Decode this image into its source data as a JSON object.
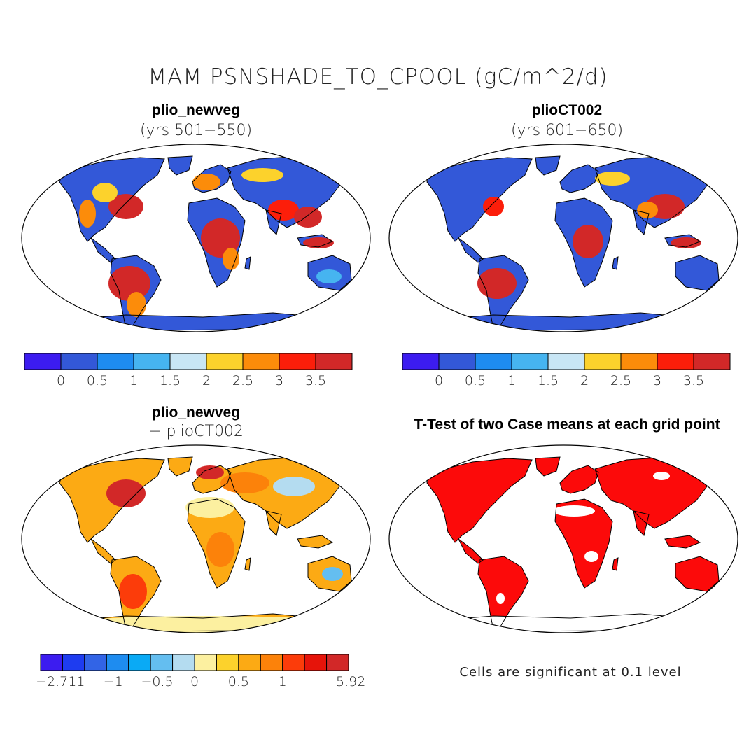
{
  "title": "MAM PSNSHADE_TO_CPOOL (gC/m^2/d)",
  "panels": [
    {
      "title": "plio_newveg",
      "subtitle": "(yrs 501−550)"
    },
    {
      "title": "plioCT002",
      "subtitle": "(yrs 601−650)"
    },
    {
      "title": "plio_newveg",
      "subtitle": "− plioCT002"
    },
    {
      "title": "T-Test of two Case means at each grid point",
      "subtitle": ""
    }
  ],
  "colorbars": {
    "absolute": {
      "colors": [
        "#3c1cf0",
        "#3358d8",
        "#1e8cf0",
        "#46b4f0",
        "#c8e6f5",
        "#fcd22c",
        "#fc8c0a",
        "#fc1e0a",
        "#d22828"
      ],
      "labels": [
        "0",
        "0.5",
        "1",
        "1.5",
        "2",
        "2.5",
        "3",
        "3.5"
      ]
    },
    "difference": {
      "colors": [
        "#3c1cf0",
        "#1e3cf0",
        "#3264e6",
        "#1e8cf0",
        "#0aaaf5",
        "#64bef0",
        "#b4dcf0",
        "#fcf0a0",
        "#fcd22c",
        "#fcaa14",
        "#fc820a",
        "#fc3c0a",
        "#e6140a",
        "#d22828"
      ],
      "labels": [
        "−2.711",
        "−1",
        "−0.5",
        "0",
        "0.5",
        "1",
        "5.92"
      ]
    }
  },
  "footnote": "Cells are significant at 0.1 level"
}
